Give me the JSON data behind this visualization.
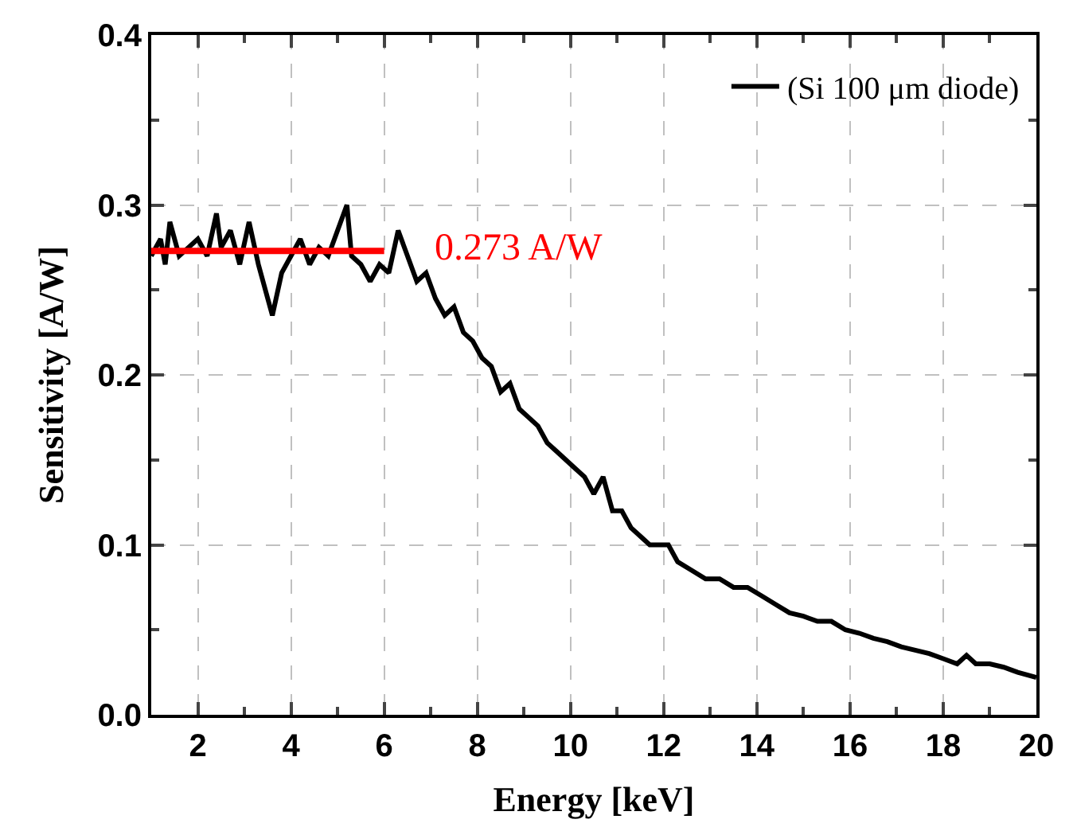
{
  "chart_data": {
    "type": "line",
    "xlabel": "Energy [keV]",
    "ylabel": "Sensitivity [A/W]",
    "xlim": [
      1,
      20
    ],
    "xticks": [
      2,
      4,
      6,
      8,
      10,
      12,
      14,
      16,
      18,
      20
    ],
    "ylim": [
      0,
      0.4
    ],
    "yticks": [
      {
        "value": 0,
        "label": "0.0"
      },
      0.1,
      0.2,
      0.3,
      0.4
    ],
    "grid": true,
    "legend": "top right",
    "marker": "none",
    "line_style": "solid",
    "series": [
      {
        "name": "(Si 100 μm diode)",
        "color": "#000000",
        "x": [
          1.0,
          1.2,
          1.3,
          1.4,
          1.6,
          1.8,
          2.0,
          2.2,
          2.4,
          2.5,
          2.7,
          2.9,
          3.1,
          3.3,
          3.5,
          3.6,
          3.8,
          4.0,
          4.2,
          4.4,
          4.6,
          4.8,
          5.0,
          5.2,
          5.3,
          5.5,
          5.7,
          5.9,
          6.1,
          6.3,
          6.5,
          6.7,
          6.9,
          7.1,
          7.3,
          7.5,
          7.7,
          7.9,
          8.1,
          8.3,
          8.5,
          8.7,
          8.9,
          9.1,
          9.3,
          9.5,
          9.7,
          9.9,
          10.1,
          10.3,
          10.5,
          10.7,
          10.9,
          11.1,
          11.3,
          11.5,
          11.7,
          11.9,
          12.1,
          12.3,
          12.6,
          12.9,
          13.2,
          13.5,
          13.8,
          14.1,
          14.4,
          14.7,
          15.0,
          15.3,
          15.6,
          15.9,
          16.2,
          16.5,
          16.8,
          17.1,
          17.4,
          17.7,
          18.0,
          18.3,
          18.5,
          18.7,
          19.0,
          19.3,
          19.6,
          20.0
        ],
        "values": [
          0.27,
          0.28,
          0.265,
          0.29,
          0.27,
          0.275,
          0.28,
          0.27,
          0.295,
          0.275,
          0.285,
          0.265,
          0.29,
          0.265,
          0.245,
          0.235,
          0.26,
          0.27,
          0.28,
          0.265,
          0.275,
          0.27,
          0.285,
          0.3,
          0.27,
          0.265,
          0.255,
          0.265,
          0.26,
          0.285,
          0.27,
          0.255,
          0.26,
          0.245,
          0.235,
          0.24,
          0.225,
          0.22,
          0.21,
          0.205,
          0.19,
          0.195,
          0.18,
          0.175,
          0.17,
          0.16,
          0.155,
          0.15,
          0.145,
          0.14,
          0.13,
          0.14,
          0.12,
          0.12,
          0.11,
          0.105,
          0.1,
          0.1,
          0.1,
          0.09,
          0.085,
          0.08,
          0.08,
          0.075,
          0.075,
          0.07,
          0.065,
          0.06,
          0.058,
          0.055,
          0.055,
          0.05,
          0.048,
          0.045,
          0.043,
          0.04,
          0.038,
          0.036,
          0.033,
          0.03,
          0.035,
          0.03,
          0.03,
          0.028,
          0.025,
          0.022
        ]
      },
      {
        "color": "#ff0000",
        "x": [
          1,
          6
        ],
        "values": [
          0.273,
          0.273
        ]
      }
    ],
    "annotations": [
      "0.273 A/W"
    ]
  }
}
